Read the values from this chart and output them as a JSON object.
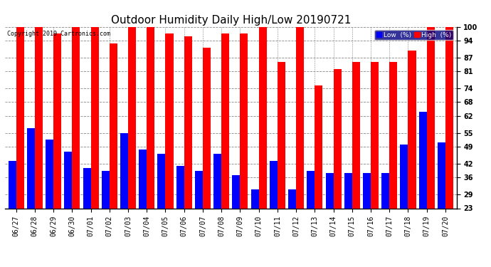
{
  "title": "Outdoor Humidity Daily High/Low 20190721",
  "copyright": "Copyright 2019 Cartronics.com",
  "dates": [
    "06/27",
    "06/28",
    "06/29",
    "06/30",
    "07/01",
    "07/02",
    "07/03",
    "07/04",
    "07/05",
    "07/06",
    "07/07",
    "07/08",
    "07/09",
    "07/10",
    "07/11",
    "07/12",
    "07/13",
    "07/14",
    "07/15",
    "07/16",
    "07/17",
    "07/18",
    "07/19",
    "07/20"
  ],
  "high": [
    100,
    100,
    97,
    100,
    100,
    93,
    100,
    100,
    97,
    96,
    91,
    97,
    97,
    100,
    85,
    100,
    75,
    82,
    85,
    85,
    85,
    90,
    100,
    100
  ],
  "low": [
    43,
    57,
    52,
    47,
    40,
    39,
    55,
    48,
    46,
    41,
    39,
    46,
    37,
    31,
    43,
    31,
    39,
    38,
    38,
    38,
    38,
    50,
    64,
    51
  ],
  "ylim_min": 23,
  "ylim_max": 100,
  "yticks": [
    23,
    29,
    36,
    42,
    49,
    55,
    62,
    68,
    74,
    81,
    87,
    94,
    100
  ],
  "bar_width": 0.42,
  "high_color": "#ff0000",
  "low_color": "#0000ff",
  "bg_color": "#ffffff",
  "grid_color": "#888888",
  "title_fontsize": 11,
  "tick_fontsize": 7,
  "xlabel_fontsize": 7,
  "legend_high_label": "High  (%)",
  "legend_low_label": "Low  (%)"
}
